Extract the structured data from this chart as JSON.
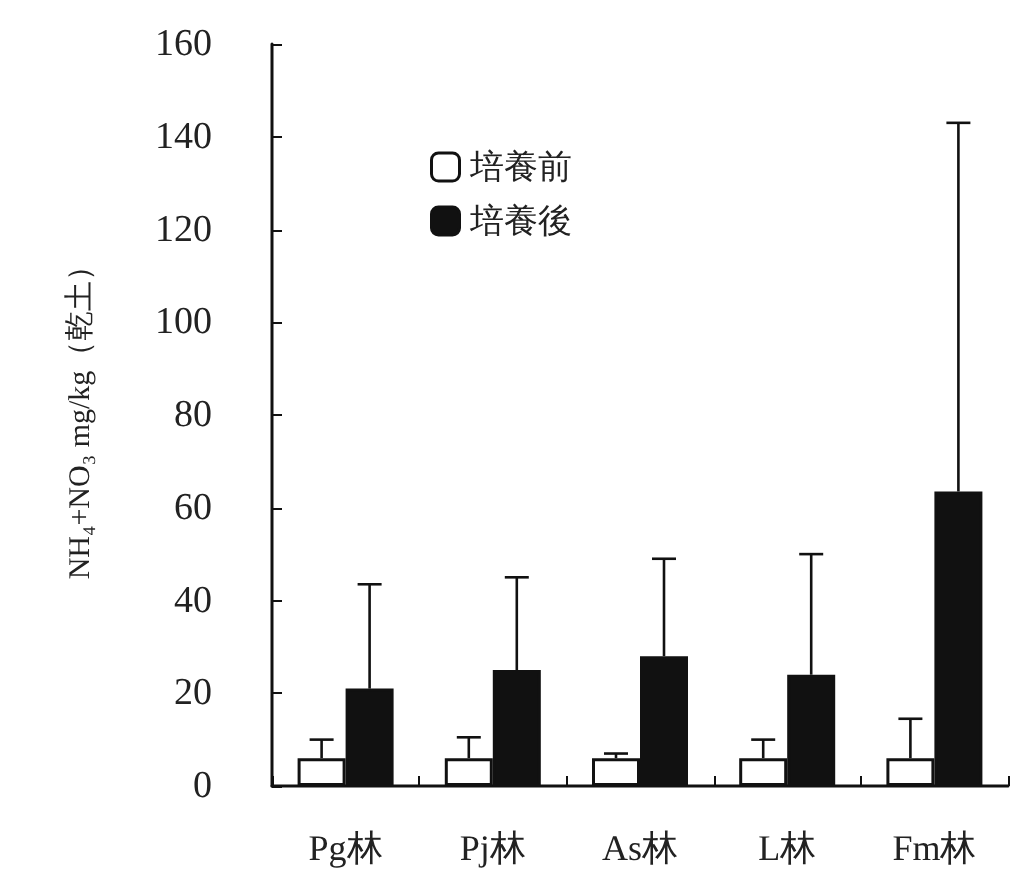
{
  "chart_data": {
    "type": "bar",
    "ylabel": "NH₄+NO₃ mg/kg（乾土）",
    "categories": [
      "Pg林",
      "Pj林",
      "As林",
      "L林",
      "Fm林"
    ],
    "series": [
      {
        "name": "培養前",
        "color": "#ffffff",
        "values": [
          6,
          6,
          6,
          6,
          6
        ],
        "errors": [
          [
            6,
            10
          ],
          [
            6,
            10.5
          ],
          [
            6,
            7
          ],
          [
            6,
            10
          ],
          [
            6,
            14.5
          ]
        ]
      },
      {
        "name": "培養後",
        "color": "#111111",
        "values": [
          21,
          25,
          28,
          24,
          63.5
        ],
        "errors": [
          [
            21,
            43.5
          ],
          [
            25,
            45
          ],
          [
            28,
            49
          ],
          [
            24,
            50
          ],
          [
            63.5,
            143
          ]
        ]
      }
    ],
    "ylim": [
      0,
      160
    ],
    "yticks": [
      0,
      20,
      40,
      60,
      80,
      100,
      120,
      140,
      160
    ],
    "grid": false,
    "legend": "top"
  }
}
